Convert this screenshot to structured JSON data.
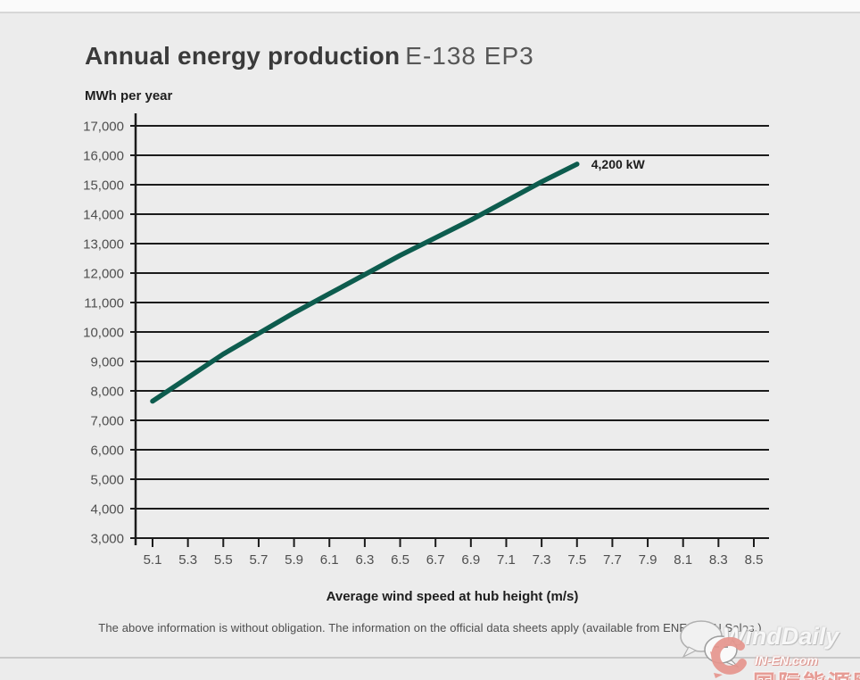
{
  "page": {
    "title_bold": "Annual energy production",
    "title_model": "E-138 EP3",
    "y_axis_unit_label": "MWh per year",
    "x_axis_title": "Average wind speed at hub height (m/s)",
    "disclaimer": "The above information is without obligation. The information on the official data sheets apply (available from ENERCON Sales.)"
  },
  "chart_data": {
    "type": "line",
    "title": "Annual energy production E-138 EP3",
    "xlabel": "Average wind speed at hub height (m/s)",
    "ylabel": "MWh per year",
    "x": [
      5.1,
      5.3,
      5.5,
      5.7,
      5.9,
      6.1,
      6.3,
      6.5,
      6.7,
      6.9,
      7.1,
      7.3,
      7.5
    ],
    "series": [
      {
        "name": "4,200 kW",
        "values": [
          7650,
          8450,
          9250,
          9950,
          10650,
          11300,
          11950,
          12600,
          13200,
          13800,
          14450,
          15100,
          15700
        ]
      }
    ],
    "annotation_label": "4,200 kW",
    "x_tick_values": [
      5.1,
      5.3,
      5.5,
      5.7,
      5.9,
      6.1,
      6.3,
      6.5,
      6.7,
      6.9,
      7.1,
      7.3,
      7.5,
      7.7,
      7.9,
      8.1,
      8.3,
      8.5
    ],
    "x_tick_labels": [
      "5.1",
      "5.3",
      "5.5",
      "5.7",
      "5.9",
      "6.1",
      "6.3",
      "6.5",
      "6.7",
      "6.9",
      "7.1",
      "7.3",
      "7.5",
      "7.7",
      "7.9",
      "8.1",
      "8.3",
      "8.5"
    ],
    "y_tick_values": [
      3000,
      4000,
      5000,
      6000,
      7000,
      8000,
      9000,
      10000,
      11000,
      12000,
      13000,
      14000,
      15000,
      16000,
      17000
    ],
    "y_tick_labels": [
      "3,000",
      "4,000",
      "5,000",
      "6,000",
      "7,000",
      "8,000",
      "9,000",
      "10,000",
      "11,000",
      "12,000",
      "13,000",
      "14,000",
      "15,000",
      "16,000",
      "17,000"
    ],
    "xlim": [
      5.0,
      8.6
    ],
    "ylim": [
      3000,
      17000
    ],
    "grid": "horizontal",
    "legend_position": "none",
    "colors": {
      "line": "#0d5c4e",
      "grid": "#1b1b1b",
      "tick_text": "#4f4f4f",
      "annotation_text": "#1c1c1c",
      "background": "#ececec"
    }
  },
  "watermark": {
    "brand": "WindDaily",
    "site": "IN-EN.com",
    "cn_name": "国际能源网"
  }
}
